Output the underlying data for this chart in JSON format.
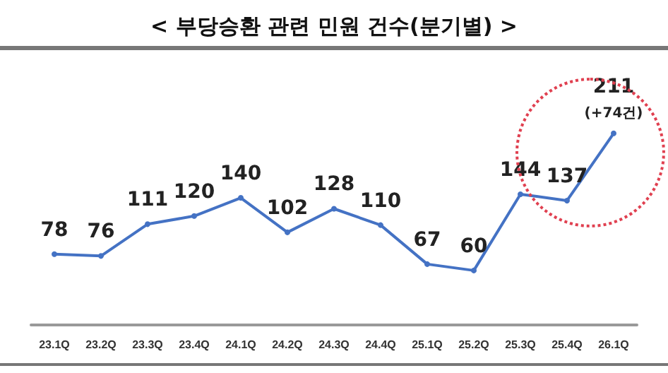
{
  "chart_data": {
    "type": "line",
    "title": "< 부당승환 관련 민원 건수(분기별) >",
    "categories": [
      "23.1Q",
      "23.2Q",
      "23.3Q",
      "23.4Q",
      "24.1Q",
      "24.2Q",
      "24.3Q",
      "24.4Q",
      "25.1Q",
      "25.2Q",
      "25.3Q",
      "25.4Q",
      "26.1Q"
    ],
    "series": [
      {
        "color": "#4472c4",
        "values": [
          78,
          76,
          111,
          120,
          140,
          102,
          128,
          110,
          67,
          60,
          144,
          137,
          211
        ]
      }
    ],
    "data_labels": true,
    "marker": "circle",
    "line_style": "solid",
    "annotations": [
      {
        "text": "(+74건)",
        "x": "26.1Q",
        "y": 211
      }
    ]
  }
}
